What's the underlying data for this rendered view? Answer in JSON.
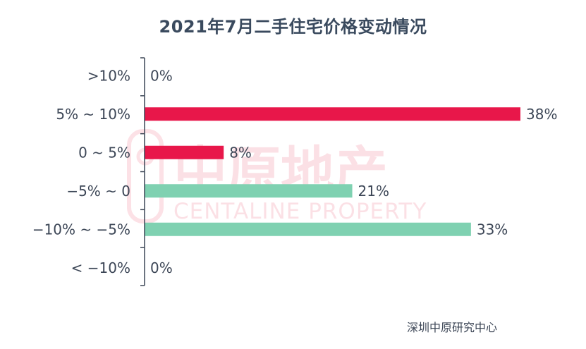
{
  "chart_data": {
    "type": "bar",
    "orientation": "horizontal",
    "title": "2021年7月二手住宅价格变动情况",
    "categories": [
      ">10%",
      "5% ~ 10%",
      "0 ~ 5%",
      "−5% ~ 0",
      "−10% ~ −5%",
      "< −10%"
    ],
    "values": [
      0,
      38,
      8,
      21,
      33,
      0
    ],
    "value_labels": [
      "0%",
      "38%",
      "8%",
      "21%",
      "33%",
      "0%"
    ],
    "bar_colors": [
      "#e8174a",
      "#e8174a",
      "#e8174a",
      "#7fd1b1",
      "#7fd1b1",
      "#7fd1b1"
    ],
    "xlim": [
      0,
      38
    ],
    "grid": false,
    "legend": "none"
  },
  "source": "深圳中原研究中心",
  "watermark": {
    "cn": "中原地产",
    "en": "CENTALINE PROPERTY"
  },
  "colors": {
    "increase": "#e8174a",
    "decrease": "#7fd1b1",
    "text": "#3c4656",
    "axis": "#3c4656"
  }
}
